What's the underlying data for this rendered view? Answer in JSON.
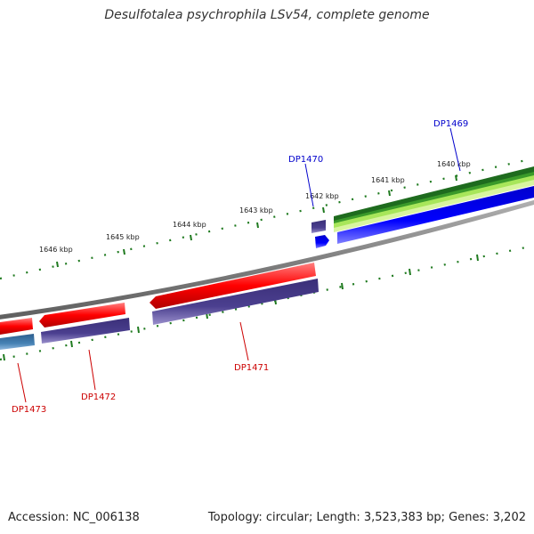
{
  "title": "Desulfotalea psychrophila LSv54, complete genome",
  "footer": {
    "accession": "Accession: NC_006138",
    "topology": "Topology: circular; Length: 3,523,383 bp; Genes: 3,202"
  },
  "ruler_labels": [
    "1646 kbp",
    "1645 kbp",
    "1644 kbp",
    "1643 kbp",
    "1642 kbp",
    "1641 kbp",
    "1640 kbp"
  ],
  "gene_labels": {
    "dp1469": "DP1469",
    "dp1470": "DP1470",
    "dp1471": "DP1471",
    "dp1472": "DP1472",
    "dp1473": "DP1473"
  },
  "colors": {
    "forward_cds": "#ff0000",
    "reverse_cds": "#4b3f8f",
    "rna": "#0000ff",
    "backbone": "#808080",
    "ticks": "#1f7a1f",
    "label_blue": "#0000cc",
    "label_red": "#cc0000",
    "green_dark": "#1e6b1e",
    "green_light": "#a8e65a",
    "steel_blue": "#4682b4"
  }
}
